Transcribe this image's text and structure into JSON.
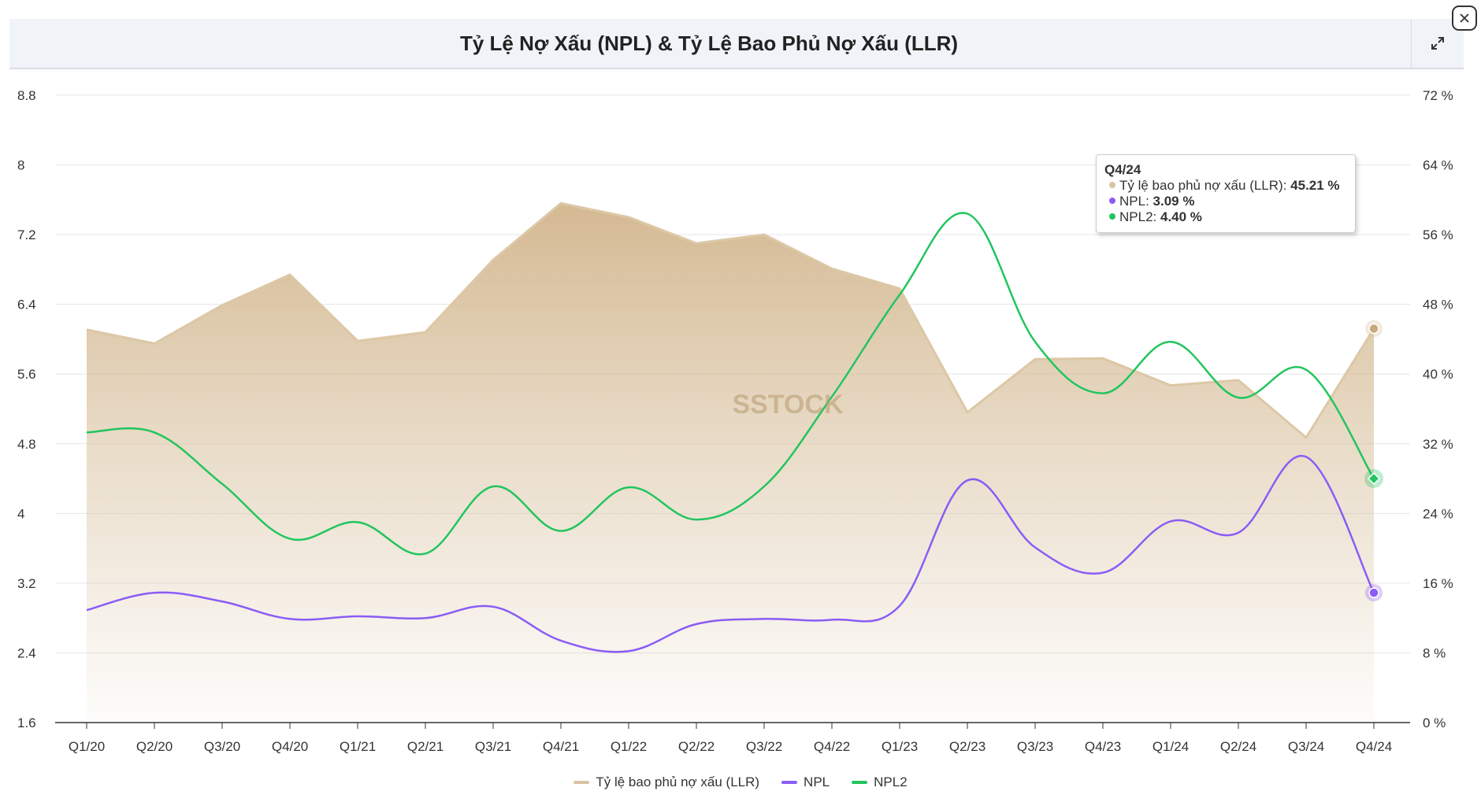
{
  "header": {
    "title": "Tỷ Lệ Nợ Xấu (NPL) & Tỷ Lệ Bao Phủ Nợ Xấu (LLR)",
    "expand_icon": "expand-icon",
    "close_icon": "close-icon"
  },
  "watermark": "SSTOCK",
  "tooltip": {
    "title": "Q4/24",
    "rows": [
      {
        "label": "Tỷ lệ bao phủ nợ xấu (LLR): ",
        "value": "45.21 %",
        "color": "#d9c4a3"
      },
      {
        "label": "NPL: ",
        "value": "3.09 %",
        "color": "#8b5cf6"
      },
      {
        "label": "NPL2: ",
        "value": "4.40 %",
        "color": "#22c55e"
      }
    ]
  },
  "chart_data": {
    "type": "line",
    "title": "Tỷ Lệ Nợ Xấu (NPL) & Tỷ Lệ Bao Phủ Nợ Xấu (LLR)",
    "categories": [
      "Q1/20",
      "Q2/20",
      "Q3/20",
      "Q4/20",
      "Q1/21",
      "Q2/21",
      "Q3/21",
      "Q4/21",
      "Q1/22",
      "Q2/22",
      "Q3/22",
      "Q4/22",
      "Q1/23",
      "Q2/23",
      "Q3/23",
      "Q4/23",
      "Q1/24",
      "Q2/24",
      "Q3/24",
      "Q4/24"
    ],
    "y_left": {
      "range": [
        1.6,
        8.8
      ],
      "ticks": [
        "1.6",
        "2.4",
        "3.2",
        "4",
        "4.8",
        "5.6",
        "6.4",
        "7.2",
        "8",
        "8.8"
      ]
    },
    "y_right": {
      "range": [
        0,
        72
      ],
      "ticks": [
        "0 %",
        "8 %",
        "16 %",
        "24 %",
        "32 %",
        "40 %",
        "48 %",
        "56 %",
        "64 %",
        "72 %"
      ]
    },
    "grid": true,
    "legend_placement": "bottom-center",
    "series": [
      {
        "name": "Tỷ lệ bao phủ nợ xấu (LLR)",
        "type": "area",
        "axis": "right",
        "color": "#d9c4a3",
        "values": [
          45.1,
          43.5,
          47.9,
          51.4,
          43.8,
          44.8,
          53.1,
          59.6,
          58.0,
          55.0,
          56.0,
          52.1,
          49.8,
          35.6,
          41.7,
          41.8,
          38.7,
          39.3,
          32.7,
          45.21
        ]
      },
      {
        "name": "NPL",
        "type": "spline",
        "axis": "left",
        "color": "#8b5cf6",
        "values": [
          2.89,
          3.09,
          2.99,
          2.79,
          2.82,
          2.8,
          2.93,
          2.54,
          2.42,
          2.73,
          2.79,
          2.78,
          2.94,
          4.38,
          3.61,
          3.32,
          3.91,
          3.78,
          4.65,
          3.09
        ]
      },
      {
        "name": "NPL2",
        "type": "spline",
        "axis": "left",
        "color": "#22c55e",
        "values": [
          4.93,
          4.93,
          4.34,
          3.71,
          3.9,
          3.54,
          4.31,
          3.8,
          4.3,
          3.93,
          4.31,
          5.34,
          6.51,
          7.44,
          5.97,
          5.38,
          5.97,
          5.33,
          5.65,
          4.4
        ]
      }
    ]
  }
}
